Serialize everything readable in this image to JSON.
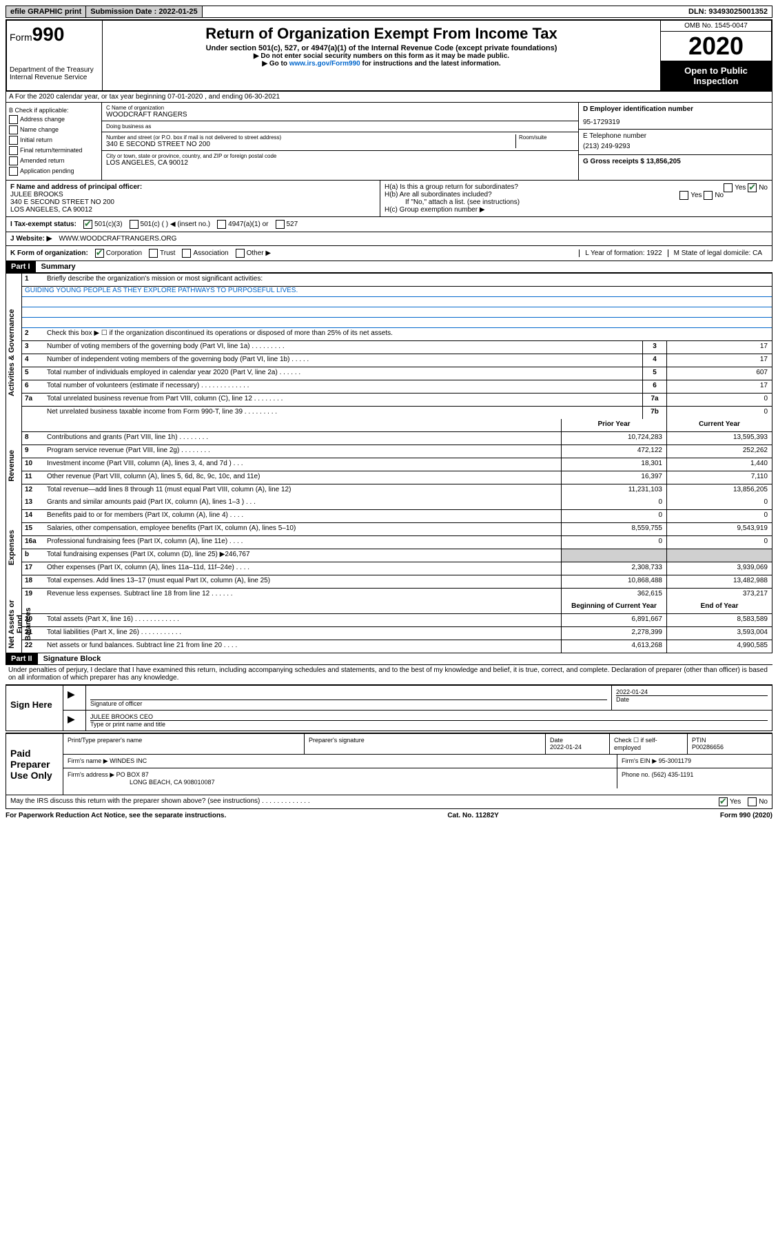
{
  "topbar": {
    "efile": "efile GRAPHIC print",
    "submission_label": "Submission Date : 2022-01-25",
    "dln": "DLN: 93493025001352"
  },
  "header": {
    "form_prefix": "Form",
    "form_number": "990",
    "dept": "Department of the Treasury\nInternal Revenue Service",
    "title": "Return of Organization Exempt From Income Tax",
    "subtitle": "Under section 501(c), 527, or 4947(a)(1) of the Internal Revenue Code (except private foundations)",
    "note1": "▶ Do not enter social security numbers on this form as it may be made public.",
    "note2_pre": "▶ Go to ",
    "note2_link": "www.irs.gov/Form990",
    "note2_post": " for instructions and the latest information.",
    "omb": "OMB No. 1545-0047",
    "year": "2020",
    "public": "Open to Public Inspection"
  },
  "row_a": "A For the 2020 calendar year, or tax year beginning 07-01-2020    , and ending 06-30-2021",
  "col_b": {
    "title": "B Check if applicable:",
    "items": [
      "Address change",
      "Name change",
      "Initial return",
      "Final return/terminated",
      "Amended return",
      "Application pending"
    ]
  },
  "col_c": {
    "name_label": "C Name of organization",
    "name": "WOODCRAFT RANGERS",
    "dba_label": "Doing business as",
    "dba": "",
    "street_label": "Number and street (or P.O. box if mail is not delivered to street address)",
    "street": "340 E SECOND STREET NO 200",
    "room_label": "Room/suite",
    "city_label": "City or town, state or province, country, and ZIP or foreign postal code",
    "city": "LOS ANGELES, CA  90012"
  },
  "col_de": {
    "d_label": "D Employer identification number",
    "d_val": "95-1729319",
    "e_label": "E Telephone number",
    "e_val": "(213) 249-9293",
    "g_label": "G Gross receipts $ 13,856,205"
  },
  "block_f": {
    "f_label": "F Name and address of principal officer:",
    "f_name": "JULEE BROOKS",
    "f_addr1": "340 E SECOND STREET NO 200",
    "f_addr2": "LOS ANGELES, CA  90012"
  },
  "block_h": {
    "ha": "H(a)  Is this a group return for subordinates?",
    "hb": "H(b)  Are all subordinates included?",
    "hb_note": "If \"No,\" attach a list. (see instructions)",
    "hc": "H(c)  Group exemption number ▶"
  },
  "row_i": {
    "label": "I  Tax-exempt status:",
    "opts": [
      "501(c)(3)",
      "501(c) (   ) ◀ (insert no.)",
      "4947(a)(1) or",
      "527"
    ]
  },
  "row_j": {
    "label": "J  Website: ▶",
    "val": "WWW.WOODCRAFTRANGERS.ORG"
  },
  "row_k": {
    "label": "K Form of organization:",
    "opts": [
      "Corporation",
      "Trust",
      "Association",
      "Other ▶"
    ],
    "l": "L Year of formation: 1922",
    "m": "M State of legal domicile: CA"
  },
  "part1": {
    "header": "Part I",
    "title": "Summary"
  },
  "summary": {
    "q1": "Briefly describe the organization's mission or most significant activities:",
    "mission": "GUIDING YOUNG PEOPLE AS THEY EXPLORE PATHWAYS TO PURPOSEFUL LIVES.",
    "q2": "Check this box ▶ ☐  if the organization discontinued its operations or disposed of more than 25% of its net assets.",
    "lines_gov": [
      {
        "n": "3",
        "d": "Number of voting members of the governing body (Part VI, line 1a)  .  .  .  .  .  .  .  .  .",
        "l": "3",
        "v": "17"
      },
      {
        "n": "4",
        "d": "Number of independent voting members of the governing body (Part VI, line 1b)  .  .  .  .  .",
        "l": "4",
        "v": "17"
      },
      {
        "n": "5",
        "d": "Total number of individuals employed in calendar year 2020 (Part V, line 2a)  .  .  .  .  .  .",
        "l": "5",
        "v": "607"
      },
      {
        "n": "6",
        "d": "Total number of volunteers (estimate if necessary)  .  .  .  .  .  .  .  .  .  .  .  .  .",
        "l": "6",
        "v": "17"
      },
      {
        "n": "7a",
        "d": "Total unrelated business revenue from Part VIII, column (C), line 12  .  .  .  .  .  .  .  .",
        "l": "7a",
        "v": "0"
      },
      {
        "n": "",
        "d": "Net unrelated business taxable income from Form 990-T, line 39  .  .  .  .  .  .  .  .  .",
        "l": "7b",
        "v": "0"
      }
    ],
    "col_hdr_prior": "Prior Year",
    "col_hdr_current": "Current Year",
    "revenue": [
      {
        "n": "8",
        "d": "Contributions and grants (Part VIII, line 1h)  .  .  .  .  .  .  .  .",
        "p": "10,724,283",
        "c": "13,595,393"
      },
      {
        "n": "9",
        "d": "Program service revenue (Part VIII, line 2g)  .  .  .  .  .  .  .  .",
        "p": "472,122",
        "c": "252,262"
      },
      {
        "n": "10",
        "d": "Investment income (Part VIII, column (A), lines 3, 4, and 7d )  .  .  .",
        "p": "18,301",
        "c": "1,440"
      },
      {
        "n": "11",
        "d": "Other revenue (Part VIII, column (A), lines 5, 6d, 8c, 9c, 10c, and 11e)",
        "p": "16,397",
        "c": "7,110"
      },
      {
        "n": "12",
        "d": "Total revenue—add lines 8 through 11 (must equal Part VIII, column (A), line 12)",
        "p": "11,231,103",
        "c": "13,856,205"
      }
    ],
    "expenses": [
      {
        "n": "13",
        "d": "Grants and similar amounts paid (Part IX, column (A), lines 1–3 )  .  .  .",
        "p": "0",
        "c": "0"
      },
      {
        "n": "14",
        "d": "Benefits paid to or for members (Part IX, column (A), line 4)  .  .  .  .",
        "p": "0",
        "c": "0"
      },
      {
        "n": "15",
        "d": "Salaries, other compensation, employee benefits (Part IX, column (A), lines 5–10)",
        "p": "8,559,755",
        "c": "9,543,919"
      },
      {
        "n": "16a",
        "d": "Professional fundraising fees (Part IX, column (A), line 11e)  .  .  .  .",
        "p": "0",
        "c": "0"
      },
      {
        "n": "b",
        "d": "Total fundraising expenses (Part IX, column (D), line 25) ▶246,767",
        "p": "",
        "c": ""
      },
      {
        "n": "17",
        "d": "Other expenses (Part IX, column (A), lines 11a–11d, 11f–24e)  .  .  .  .",
        "p": "2,308,733",
        "c": "3,939,069"
      },
      {
        "n": "18",
        "d": "Total expenses. Add lines 13–17 (must equal Part IX, column (A), line 25)",
        "p": "10,868,488",
        "c": "13,482,988"
      },
      {
        "n": "19",
        "d": "Revenue less expenses. Subtract line 18 from line 12  .  .  .  .  .  .",
        "p": "362,615",
        "c": "373,217"
      }
    ],
    "col_hdr_boy": "Beginning of Current Year",
    "col_hdr_eoy": "End of Year",
    "netassets": [
      {
        "n": "20",
        "d": "Total assets (Part X, line 16)  .  .  .  .  .  .  .  .  .  .  .  .",
        "p": "6,891,667",
        "c": "8,583,589"
      },
      {
        "n": "21",
        "d": "Total liabilities (Part X, line 26)  .  .  .  .  .  .  .  .  .  .  .",
        "p": "2,278,399",
        "c": "3,593,004"
      },
      {
        "n": "22",
        "d": "Net assets or fund balances. Subtract line 21 from line 20  .  .  .  .",
        "p": "4,613,268",
        "c": "4,990,585"
      }
    ]
  },
  "part2": {
    "header": "Part II",
    "title": "Signature Block"
  },
  "penalties": "Under penalties of perjury, I declare that I have examined this return, including accompanying schedules and statements, and to the best of my knowledge and belief, it is true, correct, and complete. Declaration of preparer (other than officer) is based on all information of which preparer has any knowledge.",
  "sign": {
    "here": "Sign Here",
    "sig_label": "Signature of officer",
    "date_label": "Date",
    "date_val": "2022-01-24",
    "name": "JULEE BROOKS CEO",
    "name_label": "Type or print name and title"
  },
  "paid": {
    "label": "Paid Preparer Use Only",
    "h1": "Print/Type preparer's name",
    "h2": "Preparer's signature",
    "h3": "Date",
    "h3v": "2022-01-24",
    "h4": "Check ☐ if self-employed",
    "h5": "PTIN",
    "h5v": "P00286656",
    "firm_label": "Firm's name    ▶",
    "firm": "WINDES INC",
    "ein_label": "Firm's EIN ▶",
    "ein": "95-3001179",
    "addr_label": "Firm's address ▶",
    "addr1": "PO BOX 87",
    "addr2": "LONG BEACH, CA  908010087",
    "phone_label": "Phone no.",
    "phone": "(562) 435-1191"
  },
  "discuss": "May the IRS discuss this return with the preparer shown above? (see instructions)  .  .  .  .  .  .  .  .  .  .  .  .  .",
  "footer": {
    "left": "For Paperwork Reduction Act Notice, see the separate instructions.",
    "mid": "Cat. No. 11282Y",
    "right": "Form 990 (2020)"
  }
}
